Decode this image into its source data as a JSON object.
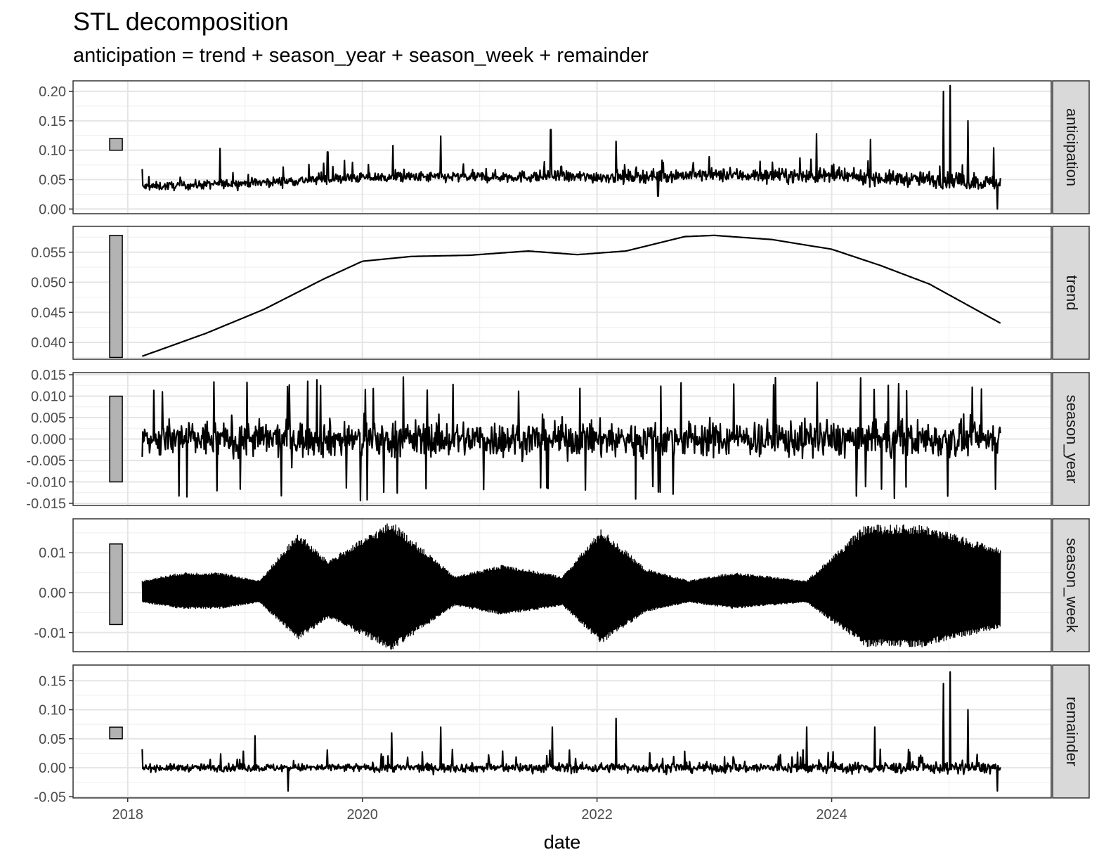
{
  "chart": {
    "title": "STL decomposition",
    "subtitle": "anticipation = trend + season_year + season_week + remainder"
  },
  "chart_data": {
    "type": "line",
    "title": "STL decomposition",
    "subtitle": "anticipation = trend + season_year + season_week + remainder",
    "xlabel": "date",
    "x_range": [
      "2017-07-15",
      "2025-11-15"
    ],
    "x_ticks": [
      "2018",
      "2020",
      "2022",
      "2024"
    ],
    "grid": true,
    "series_date_range": [
      "2018-02-15",
      "2025-06-10"
    ],
    "panels": [
      {
        "name": "anticipation",
        "ylim": [
          -0.008,
          0.218
        ],
        "y_ticks": [
          "0.00",
          "0.05",
          "0.10",
          "0.15",
          "0.20"
        ],
        "scale_bar": [
          0.1,
          0.12
        ],
        "summary": {
          "baseline": 0.05,
          "min": 0.0,
          "max": 0.21
        },
        "spikes": [
          [
            "2018-10-15",
            0.103
          ],
          [
            "2019-09-15",
            0.097
          ],
          [
            "2020-04-05",
            0.108
          ],
          [
            "2020-09-01",
            0.124
          ],
          [
            "2021-08-10",
            0.135
          ],
          [
            "2022-03-01",
            0.115
          ],
          [
            "2023-11-15",
            0.128
          ],
          [
            "2024-05-01",
            0.118
          ],
          [
            "2024-12-15",
            0.2
          ],
          [
            "2025-01-05",
            0.21
          ],
          [
            "2025-03-01",
            0.15
          ],
          [
            "2025-05-20",
            0.104
          ]
        ],
        "dips": [
          [
            "2022-07-10",
            0.022
          ],
          [
            "2025-06-01",
            0.0
          ]
        ]
      },
      {
        "name": "trend",
        "ylim": [
          0.0372,
          0.0593
        ],
        "y_ticks": [
          "0.040",
          "0.045",
          "0.050",
          "0.055"
        ],
        "scale_bar": [
          0.0375,
          0.0578
        ],
        "points": [
          [
            "2018-02-15",
            0.0377
          ],
          [
            "2018-09-01",
            0.0415
          ],
          [
            "2019-03-01",
            0.0455
          ],
          [
            "2019-09-01",
            0.0505
          ],
          [
            "2020-01-01",
            0.0535
          ],
          [
            "2020-06-01",
            0.0543
          ],
          [
            "2020-12-01",
            0.0545
          ],
          [
            "2021-06-01",
            0.0552
          ],
          [
            "2021-11-01",
            0.0546
          ],
          [
            "2022-04-01",
            0.0552
          ],
          [
            "2022-10-01",
            0.0576
          ],
          [
            "2023-01-01",
            0.0578
          ],
          [
            "2023-07-01",
            0.0571
          ],
          [
            "2024-01-01",
            0.0555
          ],
          [
            "2024-06-01",
            0.0528
          ],
          [
            "2024-11-01",
            0.0497
          ],
          [
            "2025-06-10",
            0.0432
          ]
        ]
      },
      {
        "name": "season_year",
        "ylim": [
          -0.0155,
          0.0155
        ],
        "y_ticks": [
          "-0.015",
          "-0.010",
          "-0.005",
          "0.000",
          "0.005",
          "0.010",
          "0.015"
        ],
        "scale_bar": [
          -0.01,
          0.01
        ],
        "summary": {
          "min": -0.0145,
          "max": 0.0145
        }
      },
      {
        "name": "season_week",
        "ylim": [
          -0.0148,
          0.0185
        ],
        "y_ticks": [
          "-0.01",
          "0.00",
          "0.01"
        ],
        "scale_bar": [
          -0.008,
          0.0122
        ],
        "envelope": [
          [
            "2018-02-15",
            0.003
          ],
          [
            "2018-06-15",
            0.005
          ],
          [
            "2018-10-15",
            0.005
          ],
          [
            "2019-02-15",
            0.003
          ],
          [
            "2019-06-15",
            0.015
          ],
          [
            "2019-09-15",
            0.008
          ],
          [
            "2020-04-01",
            0.018
          ],
          [
            "2020-10-15",
            0.004
          ],
          [
            "2021-03-15",
            0.007
          ],
          [
            "2021-09-15",
            0.004
          ],
          [
            "2022-01-15",
            0.016
          ],
          [
            "2022-06-01",
            0.006
          ],
          [
            "2022-10-15",
            0.003
          ],
          [
            "2023-03-01",
            0.005
          ],
          [
            "2023-10-15",
            0.003
          ],
          [
            "2024-04-15",
            0.017
          ],
          [
            "2024-10-15",
            0.017
          ],
          [
            "2025-06-10",
            0.011
          ]
        ]
      },
      {
        "name": "remainder",
        "ylim": [
          -0.052,
          0.177
        ],
        "y_ticks": [
          "-0.05",
          "0.00",
          "0.05",
          "0.10",
          "0.15"
        ],
        "scale_bar": [
          0.05,
          0.07
        ],
        "summary": {
          "baseline": 0.0,
          "min": -0.045,
          "max": 0.165
        },
        "spikes": [
          [
            "2019-02-01",
            0.055
          ],
          [
            "2020-04-01",
            0.06
          ],
          [
            "2020-09-01",
            0.07
          ],
          [
            "2021-08-15",
            0.07
          ],
          [
            "2022-03-01",
            0.085
          ],
          [
            "2023-10-15",
            0.07
          ],
          [
            "2024-05-15",
            0.07
          ],
          [
            "2024-12-15",
            0.145
          ],
          [
            "2025-01-05",
            0.165
          ],
          [
            "2025-03-01",
            0.1
          ]
        ],
        "dips": [
          [
            "2019-05-15",
            -0.04
          ],
          [
            "2025-06-01",
            -0.04
          ]
        ]
      }
    ]
  }
}
